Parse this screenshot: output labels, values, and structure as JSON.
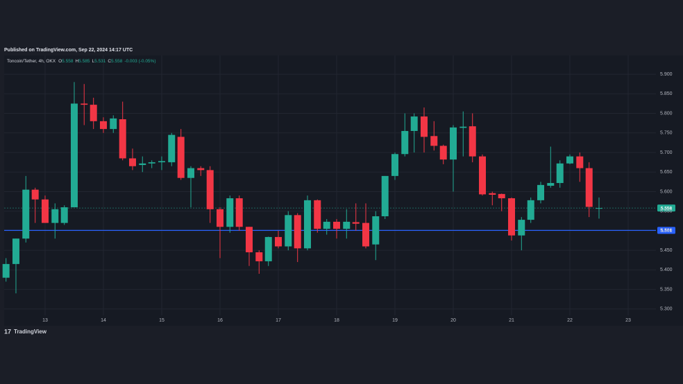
{
  "header": "Published on TradingView.com, Sep 22, 2024 14:17 UTC",
  "footer": "TradingView",
  "chart_data": {
    "type": "candlestick",
    "legend": {
      "symbol": "Toncoin/Tether, 4h, OKX",
      "items": [
        {
          "key": "O",
          "value": "5.558"
        },
        {
          "key": "H",
          "value": "5.585"
        },
        {
          "key": "L",
          "value": "5.531"
        },
        {
          "key": "C",
          "value": "5.558"
        }
      ],
      "change": "-0.003 (-0.05%)"
    },
    "up_color": "#22ab94",
    "down_color": "#f23645",
    "x": [
      12.33,
      12.5,
      12.67,
      12.83,
      13,
      13.17,
      13.33,
      13.5,
      13.67,
      13.83,
      14,
      14.17,
      14.33,
      14.5,
      14.67,
      14.83,
      15,
      15.17,
      15.33,
      15.5,
      15.67,
      15.83,
      16,
      16.17,
      16.33,
      16.5,
      16.67,
      16.83,
      17,
      17.17,
      17.33,
      17.5,
      17.67,
      17.83,
      18,
      18.17,
      18.33,
      18.5,
      18.67,
      18.83,
      19,
      19.17,
      19.33,
      19.5,
      19.67,
      19.83,
      20,
      20.17,
      20.33,
      20.5,
      20.67,
      20.83,
      21,
      21.17,
      21.33,
      21.5,
      21.67,
      21.83,
      22,
      22.17,
      22.33,
      22.5
    ],
    "open": [
      5.38,
      5.415,
      5.48,
      5.605,
      5.58,
      5.52,
      5.52,
      5.56,
      5.825,
      5.822,
      5.78,
      5.76,
      5.785,
      5.685,
      5.668,
      5.672,
      5.675,
      5.675,
      5.74,
      5.635,
      5.66,
      5.655,
      5.555,
      5.51,
      5.583,
      5.51,
      5.445,
      5.422,
      5.484,
      5.46,
      5.54,
      5.455,
      5.578,
      5.505,
      5.523,
      5.505,
      5.522,
      5.52,
      5.465,
      5.537,
      5.64,
      5.696,
      5.755,
      5.792,
      5.742,
      5.717,
      5.682,
      5.763,
      5.767,
      5.69,
      5.596,
      5.594,
      5.583,
      5.488,
      5.528,
      5.578,
      5.615,
      5.622,
      5.672,
      5.69,
      5.66,
      5.558
    ],
    "high": [
      5.43,
      5.48,
      5.64,
      5.61,
      5.59,
      5.57,
      5.565,
      5.88,
      5.875,
      5.84,
      5.79,
      5.795,
      5.83,
      5.71,
      5.69,
      5.68,
      5.69,
      5.75,
      5.76,
      5.665,
      5.665,
      5.665,
      5.56,
      5.59,
      5.59,
      5.51,
      5.45,
      5.485,
      5.5,
      5.55,
      5.545,
      5.59,
      5.58,
      5.53,
      5.53,
      5.555,
      5.57,
      5.57,
      5.55,
      5.64,
      5.7,
      5.8,
      5.8,
      5.815,
      5.78,
      5.72,
      5.77,
      5.805,
      5.8,
      5.695,
      5.6,
      5.595,
      5.585,
      5.535,
      5.585,
      5.625,
      5.715,
      5.68,
      5.695,
      5.7,
      5.675,
      5.585
    ],
    "low": [
      5.37,
      5.34,
      5.47,
      5.52,
      5.52,
      5.48,
      5.515,
      5.56,
      5.77,
      5.76,
      5.75,
      5.75,
      5.68,
      5.655,
      5.65,
      5.66,
      5.655,
      5.665,
      5.63,
      5.56,
      5.64,
      5.52,
      5.43,
      5.495,
      5.5,
      5.41,
      5.39,
      5.41,
      5.455,
      5.45,
      5.42,
      5.45,
      5.495,
      5.49,
      5.48,
      5.48,
      5.5,
      5.455,
      5.425,
      5.53,
      5.63,
      5.69,
      5.7,
      5.7,
      5.705,
      5.67,
      5.6,
      5.69,
      5.675,
      5.59,
      5.565,
      5.55,
      5.475,
      5.45,
      5.52,
      5.57,
      5.61,
      5.61,
      5.67,
      5.625,
      5.535,
      5.531
    ],
    "close": [
      5.415,
      5.48,
      5.605,
      5.58,
      5.52,
      5.555,
      5.56,
      5.825,
      5.822,
      5.78,
      5.76,
      5.787,
      5.685,
      5.665,
      5.672,
      5.675,
      5.678,
      5.745,
      5.635,
      5.66,
      5.655,
      5.555,
      5.51,
      5.583,
      5.51,
      5.445,
      5.422,
      5.484,
      5.46,
      5.54,
      5.455,
      5.578,
      5.505,
      5.523,
      5.505,
      5.523,
      5.518,
      5.46,
      5.537,
      5.64,
      5.696,
      5.755,
      5.792,
      5.74,
      5.717,
      5.682,
      5.764,
      5.766,
      5.69,
      5.593,
      5.592,
      5.583,
      5.488,
      5.528,
      5.578,
      5.617,
      5.622,
      5.672,
      5.69,
      5.66,
      5.561,
      5.558
    ],
    "xlim": [
      12.298,
      23.476
    ],
    "xticks": [
      13,
      14,
      15,
      16,
      17,
      18,
      19,
      20,
      21,
      22,
      23
    ],
    "ylim": [
      5.266,
      5.948
    ],
    "yticks": [
      {
        "value": 5.3,
        "label": "5.300"
      },
      {
        "value": 5.35,
        "label": "5.350"
      },
      {
        "value": 5.4,
        "label": "5.400"
      },
      {
        "value": 5.45,
        "label": "5.450"
      },
      {
        "value": 5.5,
        "label": "5.500"
      },
      {
        "value": 5.55,
        "label": "5.550"
      },
      {
        "value": 5.6,
        "label": "5.600"
      },
      {
        "value": 5.65,
        "label": "5.650"
      },
      {
        "value": 5.7,
        "label": "5.700"
      },
      {
        "value": 5.75,
        "label": "5.750"
      },
      {
        "value": 5.8,
        "label": "5.800"
      },
      {
        "value": 5.85,
        "label": "5.850"
      },
      {
        "value": 5.9,
        "label": "5.900"
      }
    ],
    "grid": true,
    "price_lines": [
      {
        "value": 5.558,
        "color": "#22ab94",
        "style": "dashed"
      },
      {
        "value": 5.501,
        "color": "#2962ff",
        "style": "solid"
      }
    ]
  }
}
